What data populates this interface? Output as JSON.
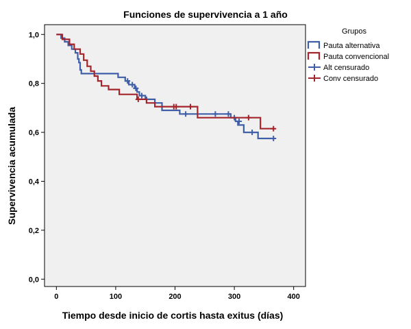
{
  "chart_data": {
    "type": "line",
    "step": true,
    "title": "Funciones de supervivencia a 1 año",
    "xlabel": "Tiempo desde inicio de cortis hasta exitus (días)",
    "ylabel": "Supervivencia acumulada",
    "xlim": [
      -20,
      420
    ],
    "ylim": [
      -0.03,
      1.04
    ],
    "xticks": [
      0,
      100,
      200,
      300,
      400
    ],
    "xtick_labels": [
      "0",
      "100",
      "200",
      "300",
      "400"
    ],
    "yticks": [
      0,
      0.2,
      0.4,
      0.6,
      0.8,
      1.0
    ],
    "ytick_labels": [
      "0,0",
      "0,2",
      "0,4",
      "0,6",
      "0,8",
      "1,0"
    ],
    "grid": false,
    "plot_background": "#f0f0f0",
    "legend": {
      "title": "Grupos",
      "placement": "outside-right-top",
      "items": [
        {
          "label": "Pauta alternativa",
          "color": "#3f5ea8",
          "marker": "step-line"
        },
        {
          "label": "Pauta convencional",
          "color": "#a3252b",
          "marker": "step-line"
        },
        {
          "label": "Alt censurado",
          "color": "#3f5ea8",
          "marker": "plus"
        },
        {
          "label": "Conv censurado",
          "color": "#a3252b",
          "marker": "plus"
        }
      ]
    },
    "series": [
      {
        "name": "Pauta alternativa",
        "color": "#3f5ea8",
        "x": [
          0,
          8,
          14,
          20,
          26,
          32,
          36,
          38,
          40,
          42,
          60,
          72,
          104,
          116,
          122,
          132,
          136,
          140,
          150,
          166,
          178,
          208,
          236,
          294,
          302,
          306,
          316,
          340,
          368
        ],
        "y": [
          1.0,
          0.985,
          0.97,
          0.955,
          0.94,
          0.925,
          0.9,
          0.885,
          0.855,
          0.84,
          0.84,
          0.84,
          0.825,
          0.81,
          0.795,
          0.78,
          0.765,
          0.75,
          0.735,
          0.72,
          0.69,
          0.675,
          0.675,
          0.66,
          0.645,
          0.63,
          0.6,
          0.575,
          0.575
        ],
        "censored": [
          {
            "x": 120,
            "y": 0.81
          },
          {
            "x": 128,
            "y": 0.795
          },
          {
            "x": 134,
            "y": 0.78
          },
          {
            "x": 144,
            "y": 0.75
          },
          {
            "x": 152,
            "y": 0.735
          },
          {
            "x": 218,
            "y": 0.675
          },
          {
            "x": 268,
            "y": 0.675
          },
          {
            "x": 290,
            "y": 0.675
          },
          {
            "x": 300,
            "y": 0.66
          },
          {
            "x": 308,
            "y": 0.645
          },
          {
            "x": 330,
            "y": 0.6
          },
          {
            "x": 366,
            "y": 0.575
          }
        ]
      },
      {
        "name": "Pauta convencional",
        "color": "#a3252b",
        "x": [
          0,
          10,
          22,
          30,
          40,
          46,
          52,
          58,
          64,
          70,
          76,
          88,
          106,
          136,
          152,
          166,
          238,
          344,
          368
        ],
        "y": [
          1.0,
          0.98,
          0.96,
          0.94,
          0.92,
          0.895,
          0.87,
          0.85,
          0.83,
          0.81,
          0.79,
          0.775,
          0.755,
          0.735,
          0.72,
          0.705,
          0.66,
          0.615,
          0.615
        ],
        "censored": [
          {
            "x": 138,
            "y": 0.735
          },
          {
            "x": 198,
            "y": 0.705
          },
          {
            "x": 202,
            "y": 0.705
          },
          {
            "x": 226,
            "y": 0.705
          },
          {
            "x": 324,
            "y": 0.66
          },
          {
            "x": 366,
            "y": 0.615
          }
        ]
      }
    ]
  }
}
